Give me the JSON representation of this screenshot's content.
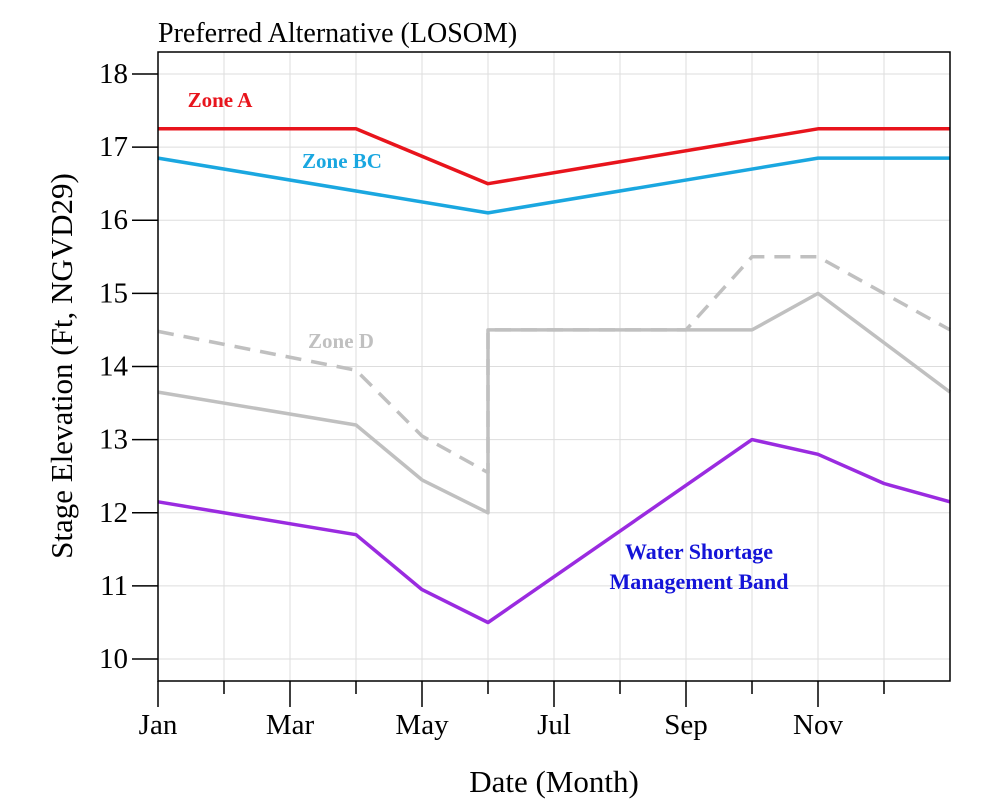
{
  "chart_data": {
    "type": "line",
    "title": "Preferred Alternative (LOSOM)",
    "xlabel": "Date (Month)",
    "ylabel": "Stage Elevation (Ft, NGVD29)",
    "x_unit": "month (1 = Jan 1, 13 = Dec 31)",
    "xlim": [
      1,
      13
    ],
    "ylim": [
      9.7,
      18.3
    ],
    "x_ticks": [
      {
        "x": 1,
        "label": "Jan"
      },
      {
        "x": 3,
        "label": "Mar"
      },
      {
        "x": 5,
        "label": "May"
      },
      {
        "x": 7,
        "label": "Jul"
      },
      {
        "x": 9,
        "label": "Sep"
      },
      {
        "x": 11,
        "label": "Nov"
      }
    ],
    "x_minor_ticks": [
      2,
      4,
      6,
      8,
      10,
      12
    ],
    "y_ticks": [
      10,
      11,
      12,
      13,
      14,
      15,
      16,
      17,
      18
    ],
    "grid": true,
    "series": [
      {
        "name": "Zone A",
        "color": "#e8141c",
        "dash": "solid",
        "x": [
          1,
          4,
          6,
          11,
          13
        ],
        "y": [
          17.25,
          17.25,
          16.5,
          17.25,
          17.25
        ]
      },
      {
        "name": "Zone BC",
        "color": "#1aa7e0",
        "dash": "solid",
        "x": [
          1,
          6,
          11,
          13
        ],
        "y": [
          16.85,
          16.1,
          16.85,
          16.85
        ]
      },
      {
        "name": "Zone D",
        "color": "#c0c0c0",
        "dash": "dashed",
        "x": [
          1,
          4,
          5,
          6,
          6,
          9,
          10,
          11,
          13
        ],
        "y": [
          14.48,
          13.95,
          13.05,
          12.55,
          14.5,
          14.5,
          15.5,
          15.5,
          14.5
        ]
      },
      {
        "name": "",
        "color": "#c0c0c0",
        "dash": "solid",
        "x": [
          1,
          4,
          5,
          6,
          6,
          10,
          11,
          13
        ],
        "y": [
          13.65,
          13.2,
          12.45,
          12.0,
          14.5,
          14.5,
          15.0,
          13.65
        ]
      },
      {
        "name": "Water Shortage Management Band",
        "color": "#9a2be0",
        "dash": "solid",
        "x": [
          1,
          4,
          5,
          6,
          10,
          11,
          12,
          13
        ],
        "y": [
          12.15,
          11.7,
          10.95,
          10.5,
          13.0,
          12.8,
          12.4,
          12.15
        ]
      }
    ],
    "annotations": [
      {
        "text": "Zone A",
        "color": "#e8141c"
      },
      {
        "text": "Zone BC",
        "color": "#1aa7e0"
      },
      {
        "text": "Zone D",
        "color": "#c0c0c0"
      },
      {
        "text": "Water Shortage",
        "color": "#1414d8"
      },
      {
        "text": "Management Band",
        "color": "#1414d8"
      }
    ]
  }
}
